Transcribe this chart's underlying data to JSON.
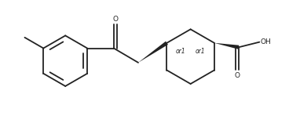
{
  "bg_color": "#ffffff",
  "line_color": "#222222",
  "line_width": 1.3,
  "text_color": "#222222",
  "font_size": 6.5,
  "or1_font_size": 5.5,
  "xlim": [
    -0.3,
    9.5
  ],
  "ylim": [
    0.2,
    4.2
  ]
}
